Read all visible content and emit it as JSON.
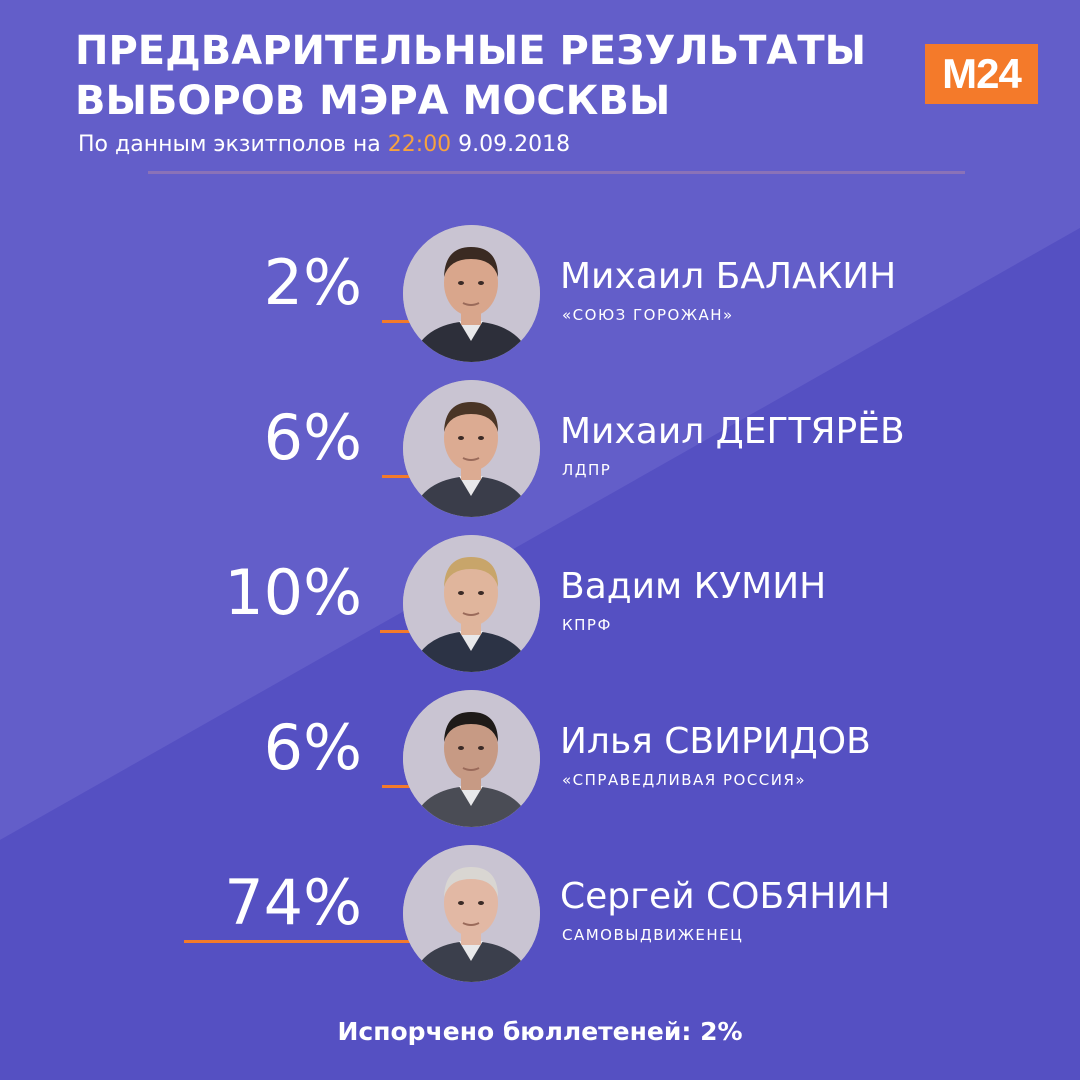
{
  "header": {
    "title_line1": "ПРЕДВАРИТЕЛЬНЫЕ РЕЗУЛЬТАТЫ",
    "title_line2": "ВЫБОРОВ МЭРА МОСКВЫ",
    "subtitle_prefix": "По данным экзитполов на ",
    "subtitle_time": "22:00",
    "subtitle_date": " 9.09.2018",
    "logo": "M24"
  },
  "colors": {
    "background": "#5b55c6",
    "accent": "#f47a2a",
    "time_highlight": "#f6a23f"
  },
  "chart_data": {
    "type": "bar",
    "unit": "%",
    "categories": [
      "Михаил БАЛАКИН",
      "Михаил ДЕГТЯРЁВ",
      "Вадим КУМИН",
      "Илья СВИРИДОВ",
      "Сергей СОБЯНИН"
    ],
    "values": [
      2,
      6,
      10,
      6,
      74
    ],
    "value_labels": [
      "2%",
      "6%",
      "10%",
      "6%",
      "74%"
    ],
    "parties": [
      "«СОЮЗ ГОРОЖАН»",
      "ЛДПР",
      "КПРФ",
      "«СПРАВЕДЛИВАЯ РОССИЯ»",
      "САМОВЫДВИЖЕНЕЦ"
    ],
    "icons": [
      "portrait-icon",
      "portrait-icon",
      "portrait-icon",
      "portrait-icon",
      "portrait-icon"
    ]
  },
  "footer": {
    "spoiled": "Испорчено бюллетеней: 2%"
  }
}
